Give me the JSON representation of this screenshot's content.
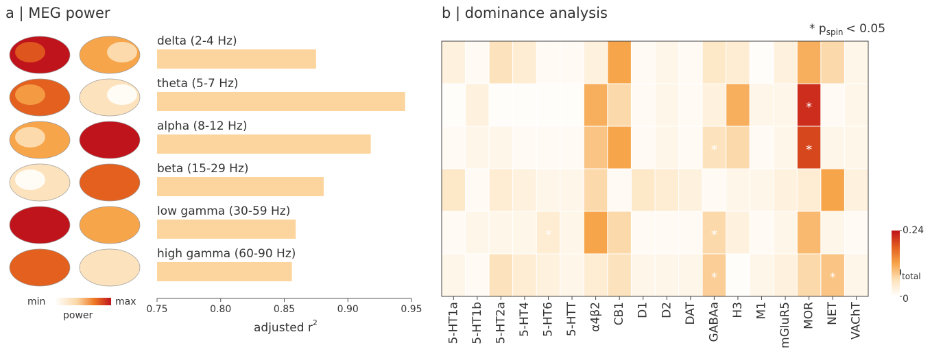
{
  "chart_data": [
    {
      "type": "bar",
      "orientation": "horizontal",
      "title": "a | MEG power",
      "categories": [
        "delta (2-4 Hz)",
        "theta (5-7 Hz)",
        "alpha (8-12 Hz)",
        "beta (15-29 Hz)",
        "low gamma (30-59 Hz)",
        "high gamma (60-90 Hz)"
      ],
      "values": [
        0.875,
        0.945,
        0.918,
        0.881,
        0.859,
        0.856
      ],
      "color": "#fcd59e",
      "xlim": [
        0.75,
        0.95
      ],
      "xticks": [
        0.75,
        {
          "value": 0.8,
          "label": "0.80"
        },
        0.85,
        {
          "value": 0.9,
          "label": "0.90"
        },
        0.95
      ],
      "xlabel": "adjusted r",
      "xlabel_sup": "2",
      "map_legend": {
        "min": "min",
        "max": "max",
        "label": "power"
      }
    },
    {
      "type": "heatmap",
      "title": "b | dominance analysis",
      "x": [
        "5-HT1a",
        "5-HT1b",
        "5-HT2a",
        "5-HT4",
        "5-HT6",
        "5-HTT",
        "α4β2",
        "CB1",
        "D1",
        "D2",
        "DAT",
        "GABAa",
        "H3",
        "M1",
        "mGluR5",
        "MOR",
        "NET",
        "VAChT"
      ],
      "values": [
        [
          0.03,
          0.01,
          0.06,
          0.04,
          0.01,
          0.01,
          0.03,
          0.12,
          0.01,
          0.02,
          0.01,
          0.05,
          0.04,
          0.005,
          0.03,
          0.11,
          0.07,
          0.02
        ],
        [
          0.005,
          0.03,
          0.005,
          0.005,
          0.005,
          0.005,
          0.11,
          0.07,
          0.01,
          0.02,
          0.01,
          0.03,
          0.11,
          0.02,
          0.02,
          0.22,
          0.01,
          0.02
        ],
        [
          0.01,
          0.02,
          0.02,
          0.01,
          0.01,
          0.01,
          0.09,
          0.12,
          0.01,
          0.02,
          0.01,
          0.06,
          0.07,
          0.01,
          0.02,
          0.2,
          0.02,
          0.02
        ],
        [
          0.05,
          0.01,
          0.04,
          0.03,
          0.02,
          0.02,
          0.07,
          0.01,
          0.05,
          0.04,
          0.03,
          0.01,
          0.02,
          0.02,
          0.03,
          0.04,
          0.12,
          0.03
        ],
        [
          0.01,
          0.02,
          0.02,
          0.02,
          0.04,
          0.02,
          0.12,
          0.07,
          0.01,
          0.01,
          0.01,
          0.07,
          0.03,
          0.01,
          0.02,
          0.1,
          0.02,
          0.01
        ],
        [
          0.02,
          0.01,
          0.06,
          0.04,
          0.03,
          0.02,
          0.04,
          0.06,
          0.02,
          0.02,
          0.02,
          0.08,
          0.005,
          0.02,
          0.03,
          0.07,
          0.09,
          0.02
        ]
      ],
      "significant": [
        [
          1,
          15
        ],
        [
          2,
          11
        ],
        [
          2,
          15
        ],
        [
          4,
          4
        ],
        [
          4,
          11
        ],
        [
          5,
          11
        ],
        [
          5,
          16
        ]
      ],
      "marker": "*",
      "annotation": {
        "text": "* p",
        "sub": "spin",
        "rest": "< 0.05"
      },
      "clim": [
        0,
        0.24
      ],
      "cticks": [
        0,
        0.24
      ],
      "colorbar_label": "D",
      "colorbar_label_sub": "total",
      "colormap": [
        "#ffffff",
        "#fde3bd",
        "#f7a54a",
        "#e3601f",
        "#c0141c"
      ]
    }
  ]
}
